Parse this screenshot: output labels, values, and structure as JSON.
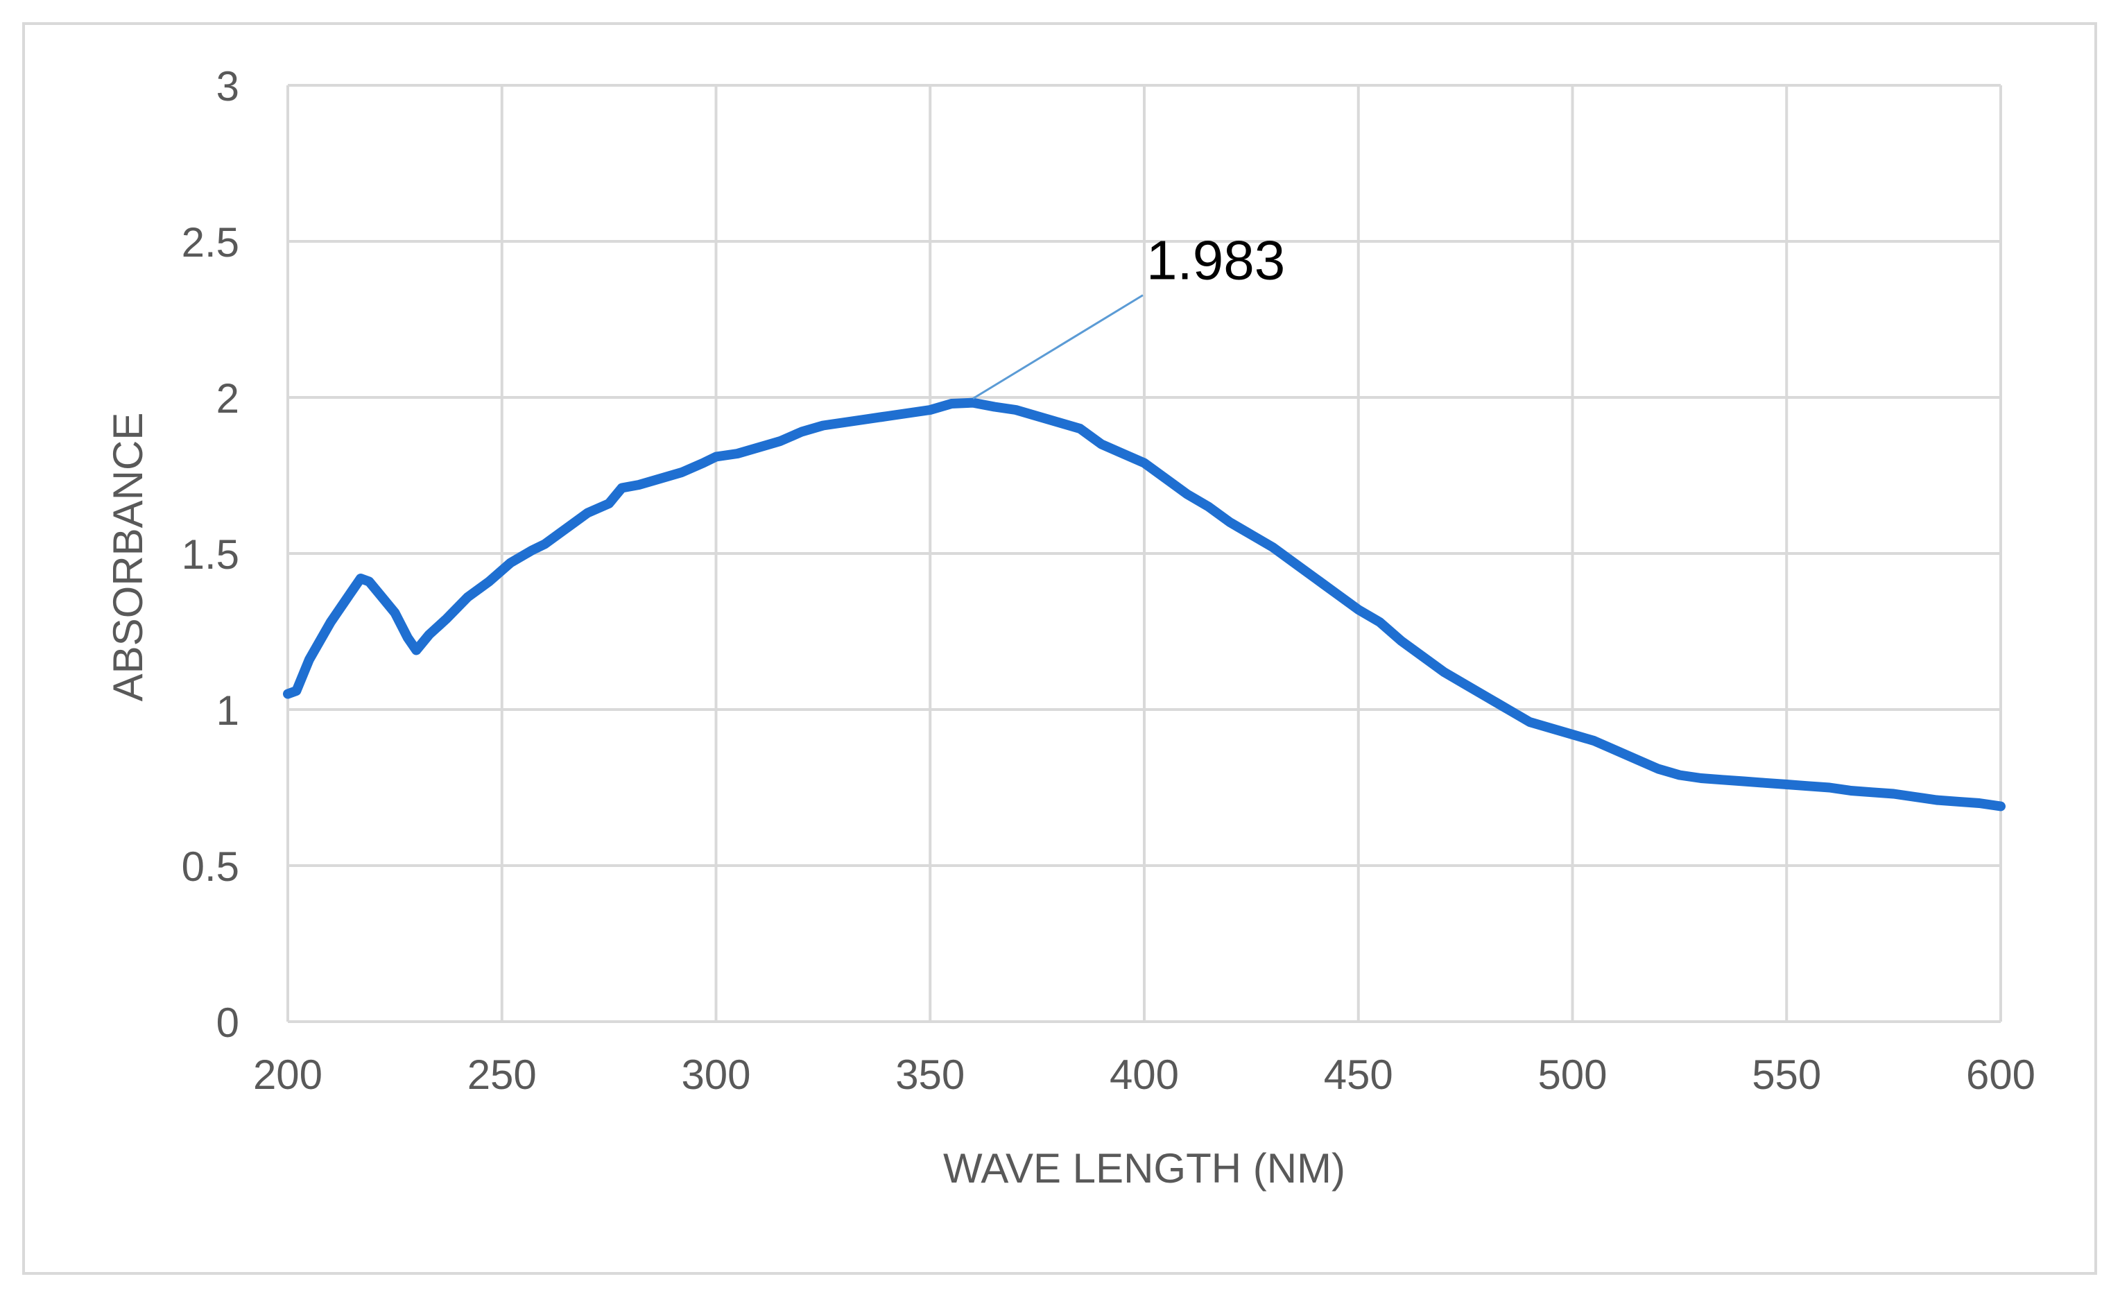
{
  "chart_data": {
    "type": "line",
    "title": "",
    "xlabel": "WAVE LENGTH (NM)",
    "ylabel": "ABSORBANCE",
    "xlim": [
      200,
      600
    ],
    "ylim": [
      0,
      3
    ],
    "xticks": [
      200,
      250,
      300,
      350,
      400,
      450,
      500,
      550,
      600
    ],
    "yticks": [
      0,
      0.5,
      1,
      1.5,
      2,
      2.5,
      3
    ],
    "ytick_labels": [
      "0",
      "0.5",
      "1",
      "1.5",
      "2",
      "2.5",
      "3"
    ],
    "grid": true,
    "legend": "none",
    "series": [
      {
        "name": "Absorbance",
        "color": "#1f6fd1",
        "x": [
          200,
          202,
          205,
          210,
          215,
          217,
          219,
          222,
          225,
          228,
          230,
          233,
          237,
          242,
          247,
          252,
          257,
          260,
          265,
          270,
          275,
          278,
          282,
          287,
          292,
          297,
          300,
          305,
          310,
          315,
          320,
          325,
          330,
          335,
          340,
          345,
          350,
          355,
          360,
          365,
          370,
          375,
          380,
          385,
          390,
          395,
          400,
          405,
          410,
          415,
          420,
          425,
          430,
          435,
          440,
          445,
          450,
          455,
          460,
          465,
          470,
          475,
          480,
          485,
          490,
          495,
          500,
          505,
          510,
          515,
          520,
          525,
          530,
          535,
          540,
          545,
          550,
          555,
          560,
          565,
          570,
          575,
          580,
          585,
          590,
          595,
          600
        ],
        "values": [
          1.05,
          1.06,
          1.16,
          1.28,
          1.38,
          1.42,
          1.41,
          1.36,
          1.31,
          1.23,
          1.19,
          1.24,
          1.29,
          1.36,
          1.41,
          1.47,
          1.51,
          1.53,
          1.58,
          1.63,
          1.66,
          1.71,
          1.72,
          1.74,
          1.76,
          1.79,
          1.81,
          1.82,
          1.84,
          1.86,
          1.89,
          1.91,
          1.92,
          1.93,
          1.94,
          1.95,
          1.96,
          1.98,
          1.983,
          1.97,
          1.96,
          1.94,
          1.92,
          1.9,
          1.85,
          1.82,
          1.79,
          1.74,
          1.69,
          1.65,
          1.6,
          1.56,
          1.52,
          1.47,
          1.42,
          1.37,
          1.32,
          1.28,
          1.22,
          1.17,
          1.12,
          1.08,
          1.04,
          1.0,
          0.96,
          0.94,
          0.92,
          0.9,
          0.87,
          0.84,
          0.81,
          0.79,
          0.78,
          0.775,
          0.77,
          0.765,
          0.76,
          0.755,
          0.75,
          0.74,
          0.735,
          0.73,
          0.72,
          0.71,
          0.705,
          0.7,
          0.69
        ]
      }
    ],
    "annotations": [
      {
        "text": "1.983",
        "x": 360,
        "y": 1.983
      }
    ]
  }
}
